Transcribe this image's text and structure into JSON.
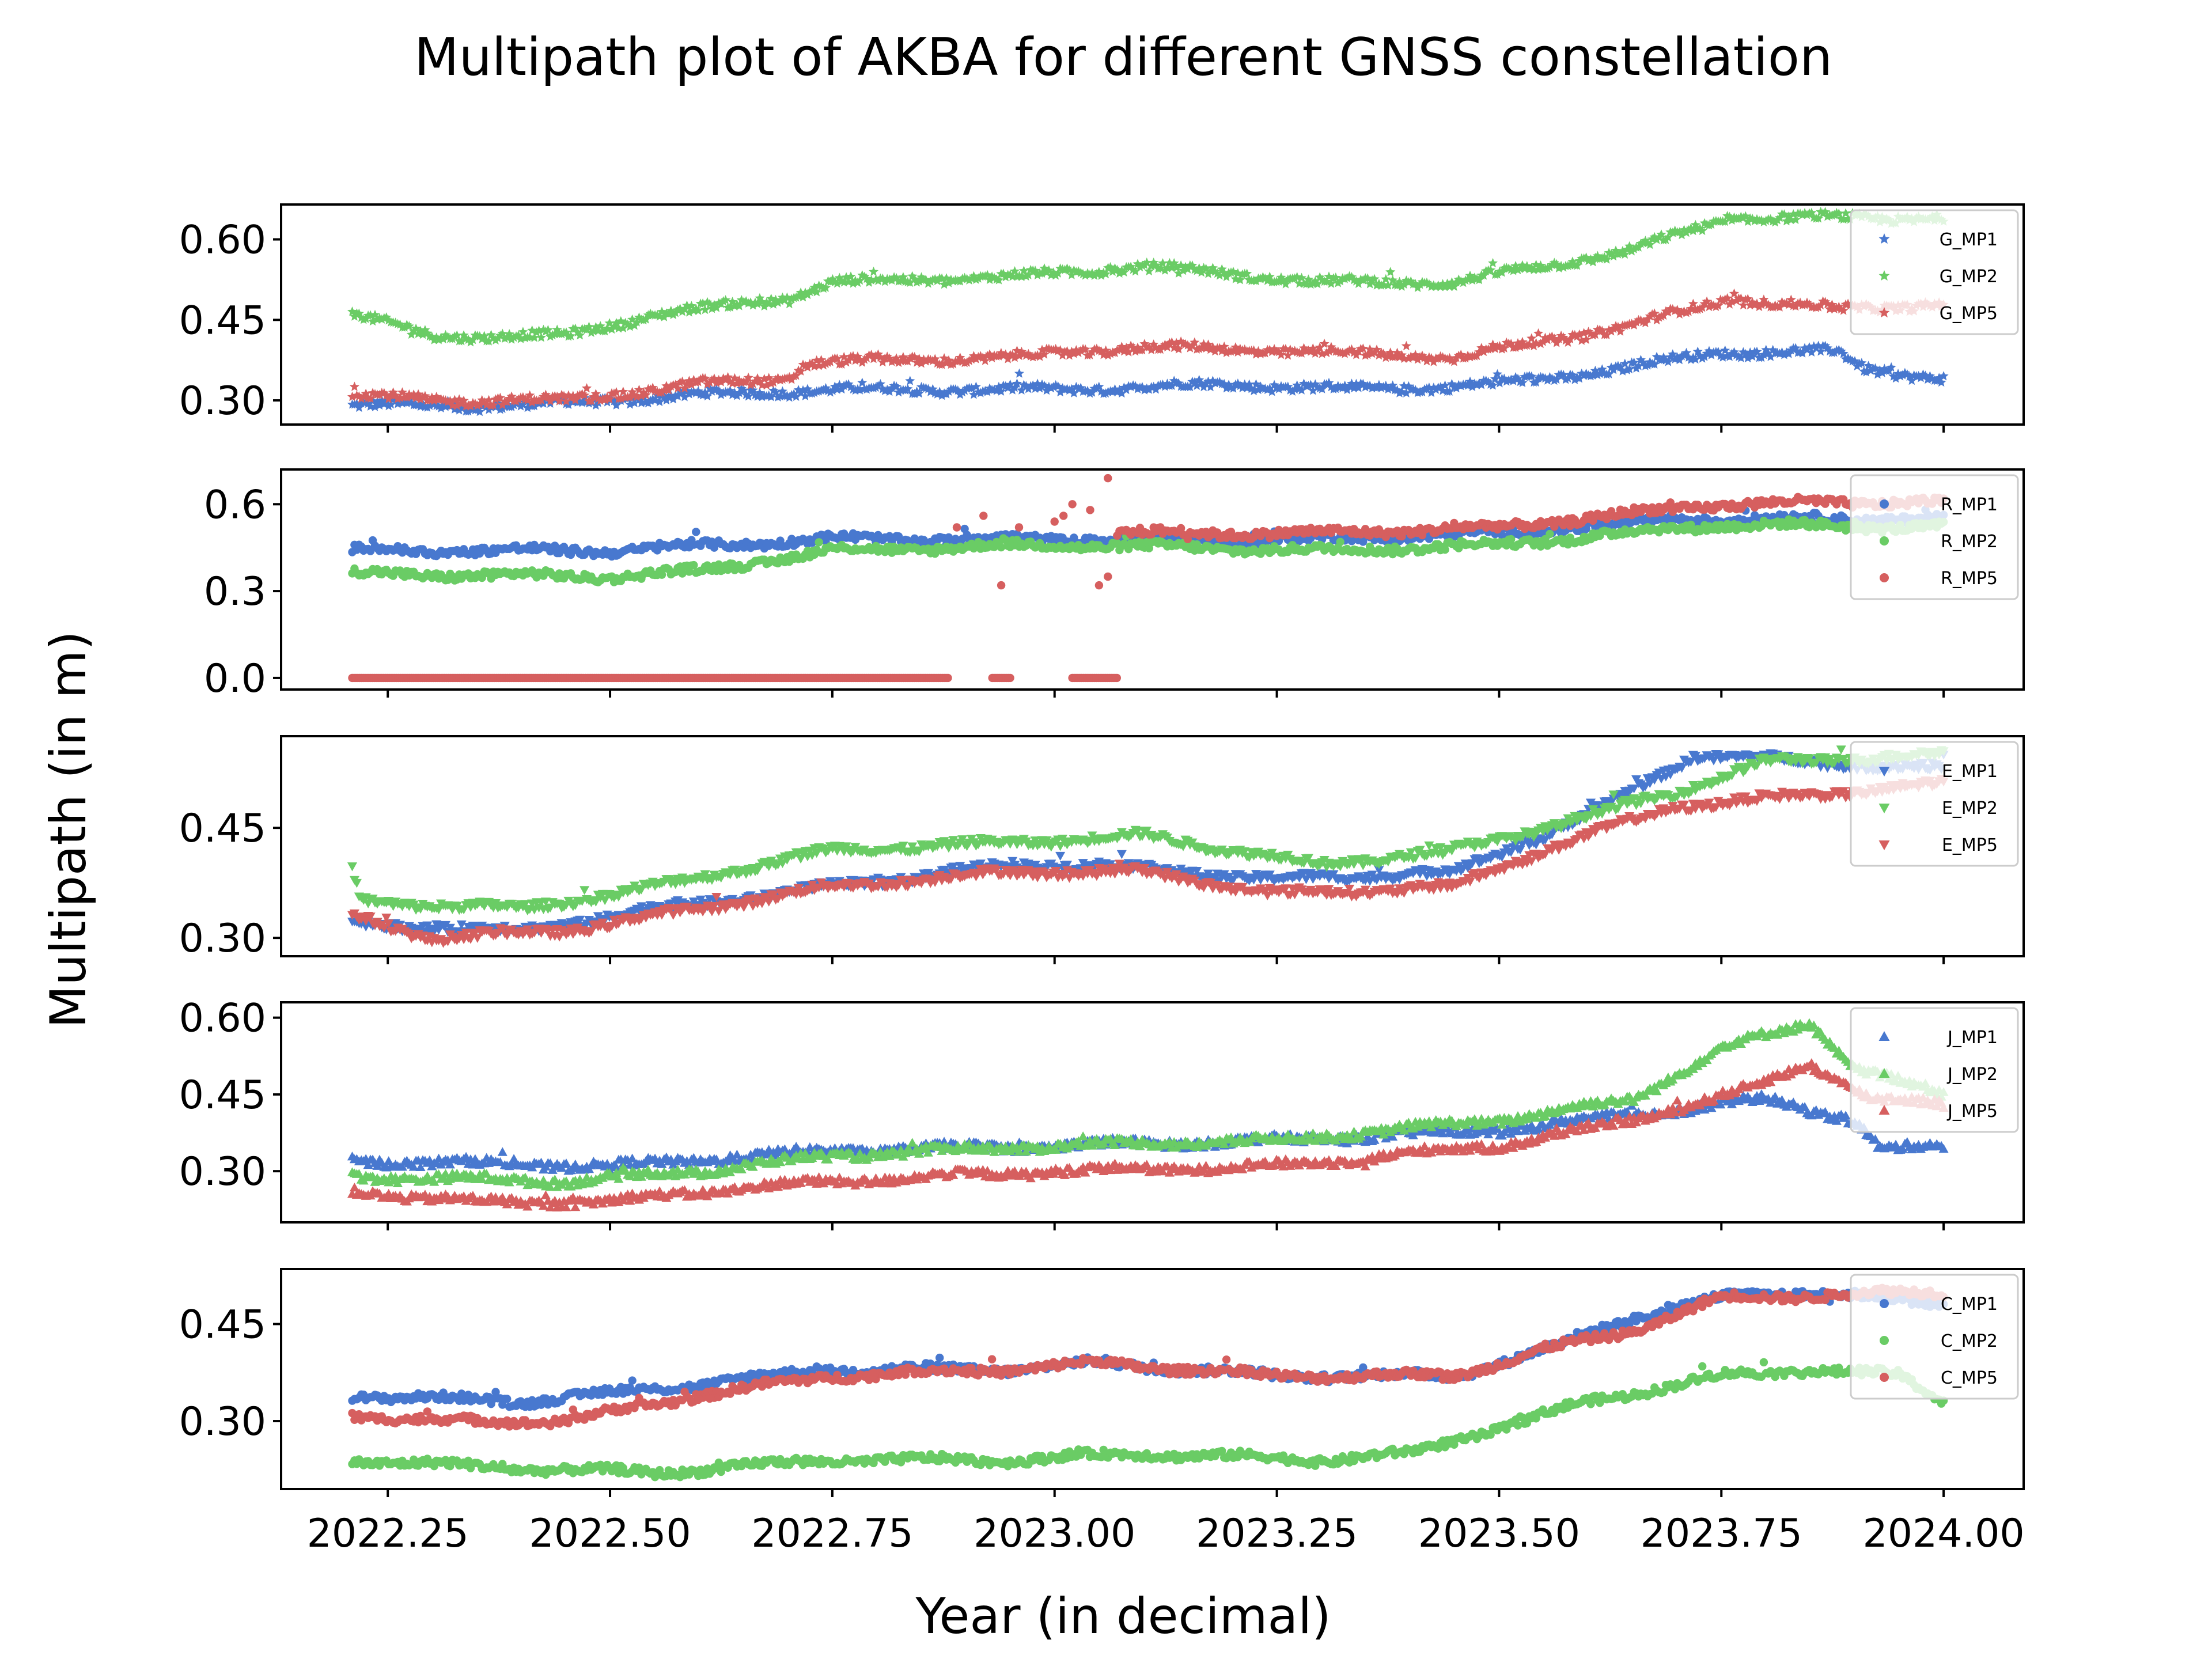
{
  "chart_data": {
    "type": "scatter",
    "title": "Multipath plot of AKBA for different GNSS constellation",
    "xlabel": "Year (in decimal)",
    "ylabel": "Multipath (in m)",
    "xlim": [
      2022.13,
      2024.09
    ],
    "x_ticks": [
      2022.25,
      2022.5,
      2022.75,
      2023.0,
      2023.25,
      2023.5,
      2023.75,
      2024.0
    ],
    "x_tick_labels": [
      "2022.25",
      "2022.50",
      "2022.75",
      "2023.00",
      "2023.25",
      "2023.50",
      "2023.75",
      "2024.00"
    ],
    "x_range": [
      2022.21,
      2024.0
    ],
    "colors": {
      "MP1": "#4878cf",
      "MP2": "#6acc65",
      "MP5": "#d65f5f"
    },
    "legend_placement": "upper right",
    "panels": [
      {
        "constellation": "G",
        "marker": "star",
        "ylim": [
          0.255,
          0.665
        ],
        "y_ticks": [
          0.3,
          0.45,
          0.6
        ],
        "y_tick_labels": [
          "0.30",
          "0.45",
          "0.60"
        ],
        "series": [
          {
            "name": "G_MP1",
            "points": [
              [
                2022.21,
                0.29
              ],
              [
                2022.4,
                0.29
              ],
              [
                2022.6,
                0.31
              ],
              [
                2022.75,
                0.32
              ],
              [
                2023.0,
                0.32
              ],
              [
                2023.2,
                0.33
              ],
              [
                2023.35,
                0.32
              ],
              [
                2023.5,
                0.33
              ],
              [
                2023.6,
                0.35
              ],
              [
                2023.75,
                0.39
              ],
              [
                2023.88,
                0.39
              ],
              [
                2023.91,
                0.36
              ],
              [
                2024.0,
                0.34
              ]
            ]
          },
          {
            "name": "G_MP2",
            "points": [
              [
                2022.21,
                0.46
              ],
              [
                2022.3,
                0.42
              ],
              [
                2022.45,
                0.42
              ],
              [
                2022.55,
                0.46
              ],
              [
                2022.7,
                0.49
              ],
              [
                2022.75,
                0.52
              ],
              [
                2022.95,
                0.53
              ],
              [
                2023.1,
                0.55
              ],
              [
                2023.3,
                0.52
              ],
              [
                2023.45,
                0.52
              ],
              [
                2023.55,
                0.55
              ],
              [
                2023.65,
                0.58
              ],
              [
                2023.76,
                0.64
              ],
              [
                2024.0,
                0.64
              ]
            ]
          },
          {
            "name": "G_MP5",
            "points": [
              [
                2022.21,
                0.31
              ],
              [
                2022.3,
                0.3
              ],
              [
                2022.45,
                0.3
              ],
              [
                2022.6,
                0.33
              ],
              [
                2022.7,
                0.34
              ],
              [
                2022.72,
                0.37
              ],
              [
                2022.95,
                0.38
              ],
              [
                2023.1,
                0.4
              ],
              [
                2023.3,
                0.39
              ],
              [
                2023.45,
                0.38
              ],
              [
                2023.55,
                0.41
              ],
              [
                2023.65,
                0.44
              ],
              [
                2023.76,
                0.49
              ],
              [
                2023.88,
                0.47
              ],
              [
                2024.0,
                0.48
              ]
            ]
          }
        ]
      },
      {
        "constellation": "R",
        "marker": "circle",
        "ylim": [
          -0.04,
          0.72
        ],
        "y_ticks": [
          0.0,
          0.3,
          0.6
        ],
        "y_tick_labels": [
          "0.0",
          "0.3",
          "0.6"
        ],
        "series": [
          {
            "name": "R_MP1",
            "points": [
              [
                2022.21,
                0.44
              ],
              [
                2022.5,
                0.44
              ],
              [
                2022.75,
                0.48
              ],
              [
                2023.0,
                0.48
              ],
              [
                2023.3,
                0.48
              ],
              [
                2023.5,
                0.5
              ],
              [
                2023.7,
                0.55
              ],
              [
                2024.0,
                0.55
              ]
            ]
          },
          {
            "name": "R_MP2",
            "points": [
              [
                2022.21,
                0.36
              ],
              [
                2022.5,
                0.35
              ],
              [
                2022.6,
                0.37
              ],
              [
                2022.75,
                0.44
              ],
              [
                2023.0,
                0.46
              ],
              [
                2023.3,
                0.44
              ],
              [
                2023.5,
                0.46
              ],
              [
                2023.75,
                0.53
              ],
              [
                2024.0,
                0.52
              ]
            ]
          },
          {
            "name": "R_MP5",
            "points": [
              [
                2023.07,
                0.5
              ],
              [
                2023.3,
                0.5
              ],
              [
                2023.5,
                0.52
              ],
              [
                2023.75,
                0.6
              ],
              [
                2024.0,
                0.61
              ]
            ],
            "zero_value_x_ranges": [
              [
                2022.21,
                2022.88
              ],
              [
                2022.93,
                2022.95
              ],
              [
                2023.02,
                2023.07
              ]
            ],
            "scattered_points": [
              [
                2022.89,
                0.52
              ],
              [
                2022.92,
                0.56
              ],
              [
                2022.94,
                0.32
              ],
              [
                2022.96,
                0.52
              ],
              [
                2023.0,
                0.54
              ],
              [
                2023.01,
                0.56
              ],
              [
                2023.02,
                0.6
              ],
              [
                2023.04,
                0.58
              ],
              [
                2023.05,
                0.32
              ],
              [
                2023.06,
                0.35
              ],
              [
                2023.06,
                0.69
              ]
            ]
          }
        ]
      },
      {
        "constellation": "E",
        "marker": "triangle-down",
        "ylim": [
          0.275,
          0.575
        ],
        "y_ticks": [
          0.3,
          0.45
        ],
        "y_tick_labels": [
          "0.30",
          "0.45"
        ],
        "series": [
          {
            "name": "E_MP1",
            "points": [
              [
                2022.21,
                0.32
              ],
              [
                2022.4,
                0.31
              ],
              [
                2022.55,
                0.34
              ],
              [
                2022.75,
                0.37
              ],
              [
                2022.95,
                0.4
              ],
              [
                2023.05,
                0.4
              ],
              [
                2023.25,
                0.38
              ],
              [
                2023.45,
                0.39
              ],
              [
                2023.55,
                0.44
              ],
              [
                2023.65,
                0.5
              ],
              [
                2023.72,
                0.55
              ],
              [
                2024.0,
                0.53
              ]
            ]
          },
          {
            "name": "E_MP2",
            "points": [
              [
                2022.21,
                0.39
              ],
              [
                2022.22,
                0.35
              ],
              [
                2022.4,
                0.34
              ],
              [
                2022.55,
                0.37
              ],
              [
                2022.75,
                0.42
              ],
              [
                2022.95,
                0.43
              ],
              [
                2023.1,
                0.44
              ],
              [
                2023.3,
                0.4
              ],
              [
                2023.45,
                0.42
              ],
              [
                2023.55,
                0.45
              ],
              [
                2023.7,
                0.5
              ],
              [
                2023.8,
                0.54
              ],
              [
                2024.0,
                0.55
              ]
            ]
          },
          {
            "name": "E_MP5",
            "points": [
              [
                2022.21,
                0.33
              ],
              [
                2022.3,
                0.3
              ],
              [
                2022.45,
                0.31
              ],
              [
                2022.55,
                0.33
              ],
              [
                2022.75,
                0.37
              ],
              [
                2022.95,
                0.39
              ],
              [
                2023.1,
                0.39
              ],
              [
                2023.25,
                0.36
              ],
              [
                2023.45,
                0.37
              ],
              [
                2023.55,
                0.42
              ],
              [
                2023.7,
                0.48
              ],
              [
                2024.0,
                0.51
              ]
            ]
          }
        ]
      },
      {
        "constellation": "J",
        "marker": "triangle-up",
        "ylim": [
          0.2,
          0.63
        ],
        "y_ticks": [
          0.3,
          0.45,
          0.6
        ],
        "y_tick_labels": [
          "0.30",
          "0.45",
          "0.60"
        ],
        "series": [
          {
            "name": "J_MP1",
            "points": [
              [
                2022.21,
                0.32
              ],
              [
                2022.5,
                0.31
              ],
              [
                2022.75,
                0.34
              ],
              [
                2023.0,
                0.35
              ],
              [
                2023.25,
                0.36
              ],
              [
                2023.5,
                0.38
              ],
              [
                2023.7,
                0.42
              ],
              [
                2023.8,
                0.44
              ],
              [
                2023.9,
                0.4
              ],
              [
                2023.93,
                0.34
              ],
              [
                2024.0,
                0.35
              ]
            ]
          },
          {
            "name": "J_MP2",
            "points": [
              [
                2022.21,
                0.29
              ],
              [
                2022.45,
                0.28
              ],
              [
                2022.6,
                0.3
              ],
              [
                2022.75,
                0.33
              ],
              [
                2023.0,
                0.35
              ],
              [
                2023.25,
                0.36
              ],
              [
                2023.5,
                0.4
              ],
              [
                2023.65,
                0.44
              ],
              [
                2023.75,
                0.54
              ],
              [
                2023.85,
                0.59
              ],
              [
                2023.9,
                0.5
              ],
              [
                2024.0,
                0.45
              ]
            ]
          },
          {
            "name": "J_MP5",
            "points": [
              [
                2022.21,
                0.26
              ],
              [
                2022.35,
                0.24
              ],
              [
                2022.5,
                0.24
              ],
              [
                2022.6,
                0.26
              ],
              [
                2022.75,
                0.28
              ],
              [
                2023.0,
                0.3
              ],
              [
                2023.25,
                0.31
              ],
              [
                2023.5,
                0.35
              ],
              [
                2023.65,
                0.4
              ],
              [
                2023.78,
                0.46
              ],
              [
                2023.85,
                0.51
              ],
              [
                2023.92,
                0.44
              ],
              [
                2024.0,
                0.43
              ]
            ]
          }
        ]
      },
      {
        "constellation": "C",
        "marker": "circle",
        "ylim": [
          0.195,
          0.535
        ],
        "y_ticks": [
          0.3,
          0.45
        ],
        "y_tick_labels": [
          "0.30",
          "0.45"
        ],
        "series": [
          {
            "name": "C_MP1",
            "points": [
              [
                2022.21,
                0.34
              ],
              [
                2022.4,
                0.33
              ],
              [
                2022.55,
                0.35
              ],
              [
                2022.75,
                0.38
              ],
              [
                2022.95,
                0.38
              ],
              [
                2023.05,
                0.39
              ],
              [
                2023.25,
                0.37
              ],
              [
                2023.45,
                0.37
              ],
              [
                2023.55,
                0.41
              ],
              [
                2023.65,
                0.46
              ],
              [
                2023.75,
                0.49
              ],
              [
                2023.85,
                0.5
              ],
              [
                2024.0,
                0.48
              ]
            ]
          },
          {
            "name": "C_MP2",
            "points": [
              [
                2022.21,
                0.24
              ],
              [
                2022.35,
                0.23
              ],
              [
                2022.55,
                0.22
              ],
              [
                2022.75,
                0.24
              ],
              [
                2022.95,
                0.24
              ],
              [
                2023.1,
                0.25
              ],
              [
                2023.3,
                0.24
              ],
              [
                2023.4,
                0.25
              ],
              [
                2023.5,
                0.29
              ],
              [
                2023.6,
                0.33
              ],
              [
                2023.75,
                0.37
              ],
              [
                2023.85,
                0.38
              ],
              [
                2023.95,
                0.37
              ],
              [
                2024.0,
                0.33
              ]
            ]
          },
          {
            "name": "C_MP5",
            "points": [
              [
                2022.21,
                0.31
              ],
              [
                2022.3,
                0.3
              ],
              [
                2022.45,
                0.3
              ],
              [
                2022.6,
                0.34
              ],
              [
                2022.75,
                0.37
              ],
              [
                2022.95,
                0.38
              ],
              [
                2023.05,
                0.39
              ],
              [
                2023.25,
                0.37
              ],
              [
                2023.45,
                0.37
              ],
              [
                2023.55,
                0.41
              ],
              [
                2023.65,
                0.44
              ],
              [
                2023.75,
                0.49
              ],
              [
                2024.0,
                0.5
              ]
            ]
          }
        ]
      }
    ]
  }
}
